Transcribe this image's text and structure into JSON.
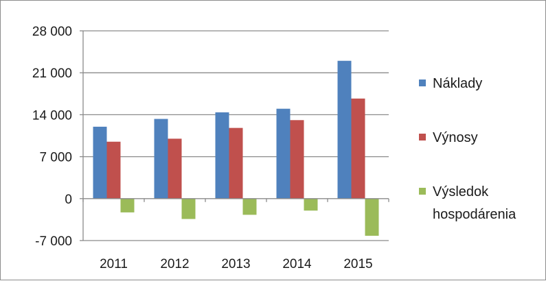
{
  "chart_data": {
    "type": "bar",
    "categories": [
      "2011",
      "2012",
      "2013",
      "2014",
      "2015"
    ],
    "series": [
      {
        "name": "Náklady",
        "values": [
          12000,
          13300,
          14400,
          15000,
          23000
        ],
        "color": "#4f81bd"
      },
      {
        "name": "Výnosy",
        "values": [
          9500,
          10000,
          11800,
          13100,
          16700
        ],
        "color": "#c0504d"
      },
      {
        "name": "Výsledok hospodárenia",
        "name_lines": [
          "Výsledok",
          "hospodárenia"
        ],
        "values": [
          -2300,
          -3400,
          -2700,
          -2000,
          -6200
        ],
        "color": "#9bbb59"
      }
    ],
    "y_ticks": [
      "28 000",
      "21 000",
      "14 000",
      "7 000",
      "0",
      "-7 000"
    ],
    "y_tick_values": [
      28000,
      21000,
      14000,
      7000,
      0,
      -7000
    ],
    "ylim": [
      -7000,
      28000
    ],
    "grid": true,
    "legend": "right",
    "title": "",
    "xlabel": "",
    "ylabel": ""
  }
}
